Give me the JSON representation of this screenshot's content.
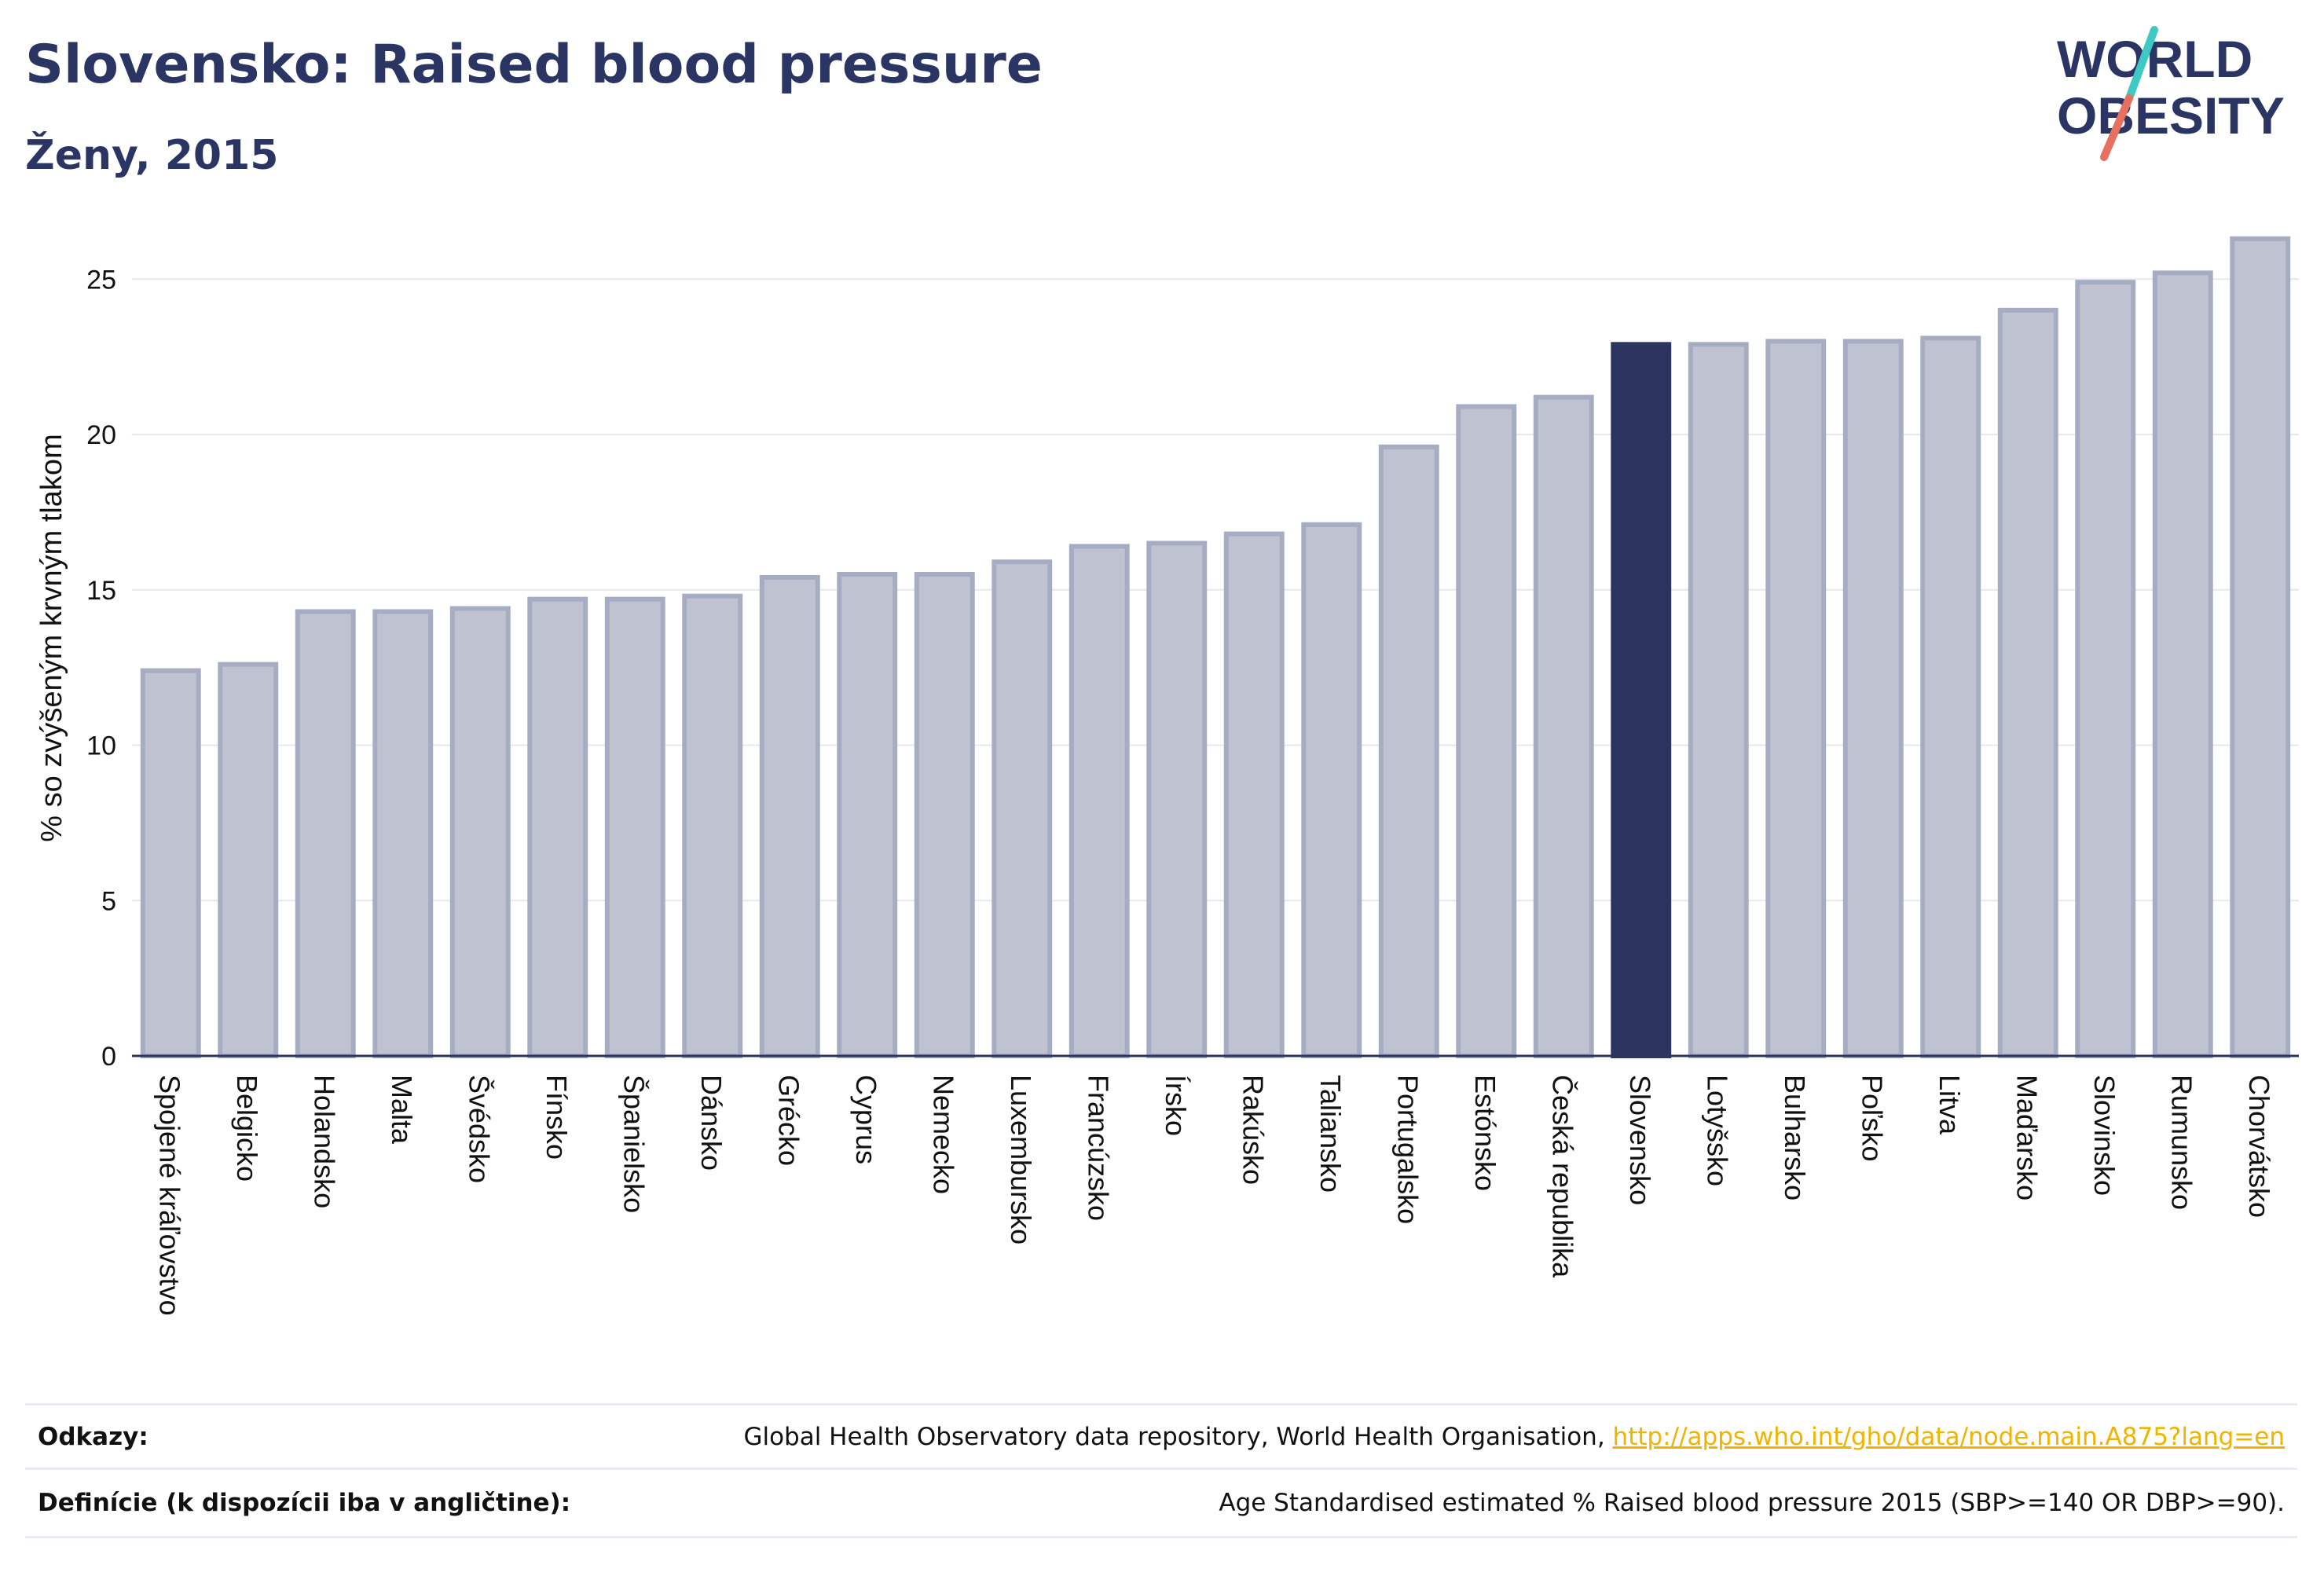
{
  "header": {
    "title": "Slovensko: Raised blood pressure",
    "subtitle": "Ženy, 2015"
  },
  "logo": {
    "line1": "WORLD",
    "line2": "OBESITY",
    "accent_colors": [
      "#3ec9c3",
      "#e8705e"
    ]
  },
  "colors": {
    "bar": "#bfc3d1",
    "bar_stroke": "#a6acc2",
    "highlight": "#2b3560",
    "text": "#2b3564",
    "grid": "#e6e8ef",
    "axis": "#2b3560"
  },
  "chart_data": {
    "type": "bar",
    "ylabel": "% so zvýšeným krvným tlakom",
    "ylim": [
      0,
      26.6
    ],
    "yticks": [
      0,
      5,
      10,
      15,
      20,
      25
    ],
    "grid": true,
    "highlight": "Slovensko",
    "categories": [
      "Spojené kráľovstvo",
      "Belgicko",
      "Holandsko",
      "Malta",
      "Švédsko",
      "Fínsko",
      "Španielsko",
      "Dánsko",
      "Grécko",
      "Cyprus",
      "Nemecko",
      "Luxembursko",
      "Francúzsko",
      "Írsko",
      "Rakúsko",
      "Taliansko",
      "Portugalsko",
      "Estónsko",
      "Česká republika",
      "Slovensko",
      "Lotyšsko",
      "Bulharsko",
      "Poľsko",
      "Litva",
      "Maďarsko",
      "Slovinsko",
      "Rumunsko",
      "Chorvátsko"
    ],
    "values": [
      12.4,
      12.6,
      14.3,
      14.3,
      14.4,
      14.7,
      14.7,
      14.8,
      15.4,
      15.5,
      15.5,
      15.9,
      16.4,
      16.5,
      16.8,
      17.1,
      19.6,
      20.9,
      21.2,
      22.9,
      22.9,
      23.0,
      23.0,
      23.1,
      24.0,
      24.9,
      25.2,
      26.3
    ]
  },
  "footer": {
    "sources_label": "Odkazy:",
    "sources_text": "Global Health Observatory data repository, World Health Organisation,",
    "sources_link": "http://apps.who.int/gho/data/node.main.A875?lang=en",
    "definitions_label": "Definície (k dispozícii iba v angličtine):",
    "definitions_text": "Age Standardised estimated % Raised blood pressure 2015 (SBP>=140 OR DBP>=90)."
  }
}
